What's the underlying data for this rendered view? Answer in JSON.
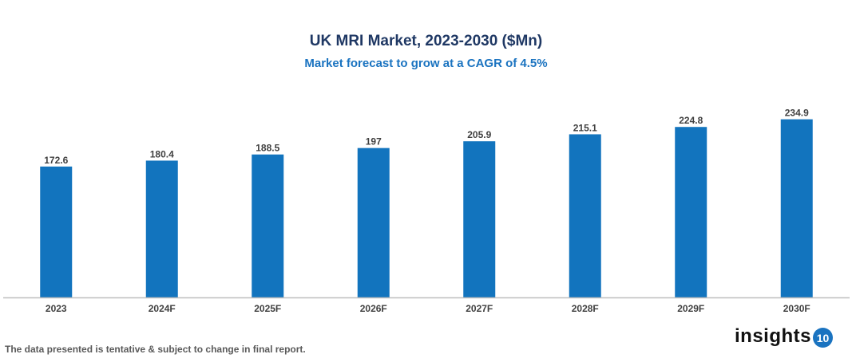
{
  "chart_data": {
    "type": "bar",
    "title": "UK MRI Market, 2023-2030 ($Mn)",
    "subtitle": "Market forecast to grow at a CAGR of 4.5%",
    "categories": [
      "2023",
      "2024F",
      "2025F",
      "2026F",
      "2027F",
      "2028F",
      "2029F",
      "2030F"
    ],
    "values": [
      172.6,
      180.4,
      188.5,
      197,
      205.9,
      215.1,
      224.8,
      234.9
    ],
    "xlabel": "",
    "ylabel": "",
    "ylim": [
      0,
      245
    ],
    "grid": false,
    "bar_color": "#1274be",
    "data_labels": true
  },
  "footnote": "The data presented is tentative & subject to change in final report.",
  "logo": {
    "text": "insights",
    "badge": "10"
  }
}
